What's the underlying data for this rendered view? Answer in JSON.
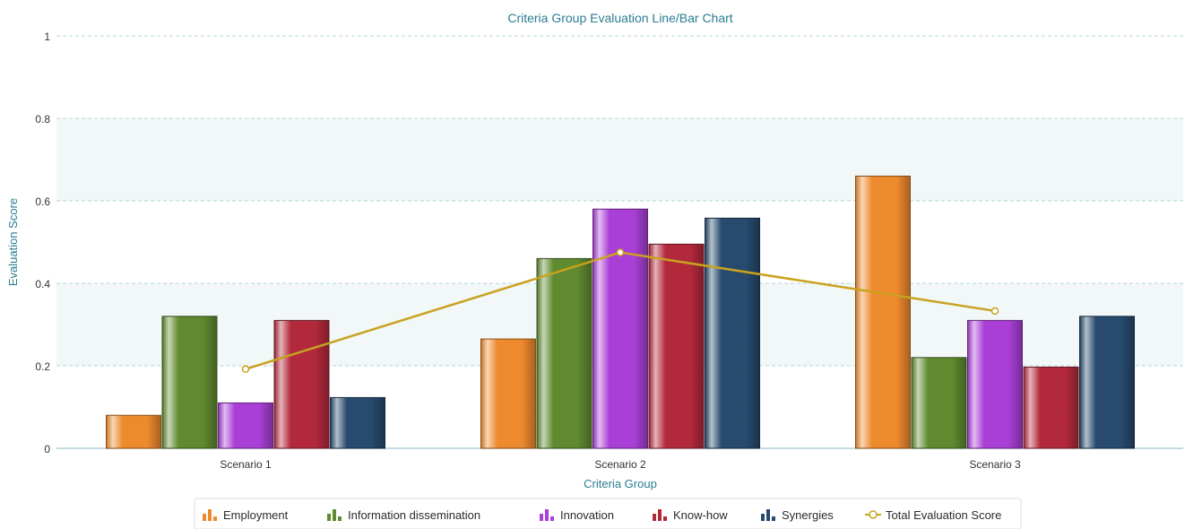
{
  "chart_data": {
    "type": "bar",
    "title": "Criteria Group Evaluation Line/Bar Chart",
    "xlabel": "Criteria Group",
    "ylabel": "Evaluation Score",
    "ylim": [
      0,
      1
    ],
    "yticks": [
      "0",
      "0.2",
      "0.4",
      "0.6",
      "0.8",
      "1"
    ],
    "categories": [
      "Scenario 1",
      "Scenario 2",
      "Scenario 3"
    ],
    "series": [
      {
        "name": "Employment",
        "color": "#ee8a2e",
        "values": [
          0.08,
          0.265,
          0.66
        ]
      },
      {
        "name": "Information dissemination",
        "color": "#5f8a2f",
        "values": [
          0.32,
          0.46,
          0.22
        ]
      },
      {
        "name": "Innovation",
        "color": "#a93fd6",
        "values": [
          0.11,
          0.58,
          0.31
        ]
      },
      {
        "name": "Know-how",
        "color": "#b3293c",
        "values": [
          0.31,
          0.495,
          0.197
        ]
      },
      {
        "name": "Synergies",
        "color": "#274a6e",
        "values": [
          0.123,
          0.558,
          0.32
        ]
      }
    ],
    "line_series": {
      "name": "Total Evaluation Score",
      "color": "#c9a21e",
      "values": [
        0.192,
        0.475,
        0.333
      ]
    },
    "grid": true,
    "legend_position": "bottom"
  }
}
